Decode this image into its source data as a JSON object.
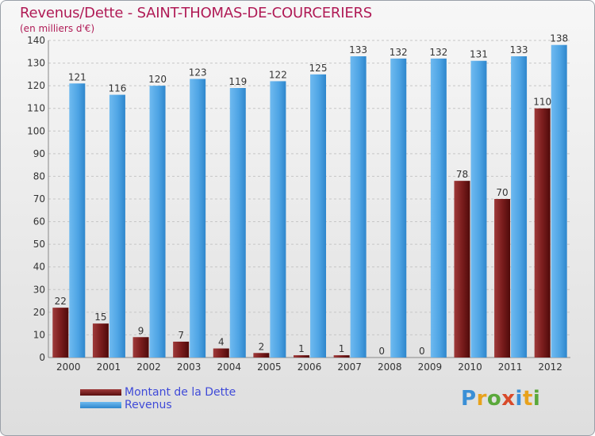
{
  "title": "Revenus/Dette - SAINT-THOMAS-DE-COURCERIERS",
  "subtitle": "(en milliers d'€)",
  "logo": "Proxiti",
  "chart_data": {
    "type": "bar",
    "categories": [
      "2000",
      "2001",
      "2002",
      "2003",
      "2004",
      "2005",
      "2006",
      "2007",
      "2008",
      "2009",
      "2010",
      "2011",
      "2012"
    ],
    "series": [
      {
        "name": "Montant de la Dette",
        "color": "#7b1d1d",
        "values": [
          22,
          15,
          9,
          7,
          4,
          2,
          1,
          1,
          0,
          0,
          78,
          70,
          110
        ]
      },
      {
        "name": "Revenus",
        "color": "#4ea4e4",
        "values": [
          121,
          116,
          120,
          123,
          119,
          122,
          125,
          133,
          132,
          132,
          131,
          133,
          138
        ]
      }
    ],
    "ylim": [
      0,
      140
    ],
    "yticks": [
      0,
      10,
      20,
      30,
      40,
      50,
      60,
      70,
      80,
      90,
      100,
      110,
      120,
      130,
      140
    ],
    "grid": true,
    "legend_position": "bottom-left"
  },
  "legend": [
    {
      "label": "Montant de la Dette",
      "color": "#7b1d1d"
    },
    {
      "label": "Revenus",
      "color": "#4ea4e4"
    }
  ]
}
